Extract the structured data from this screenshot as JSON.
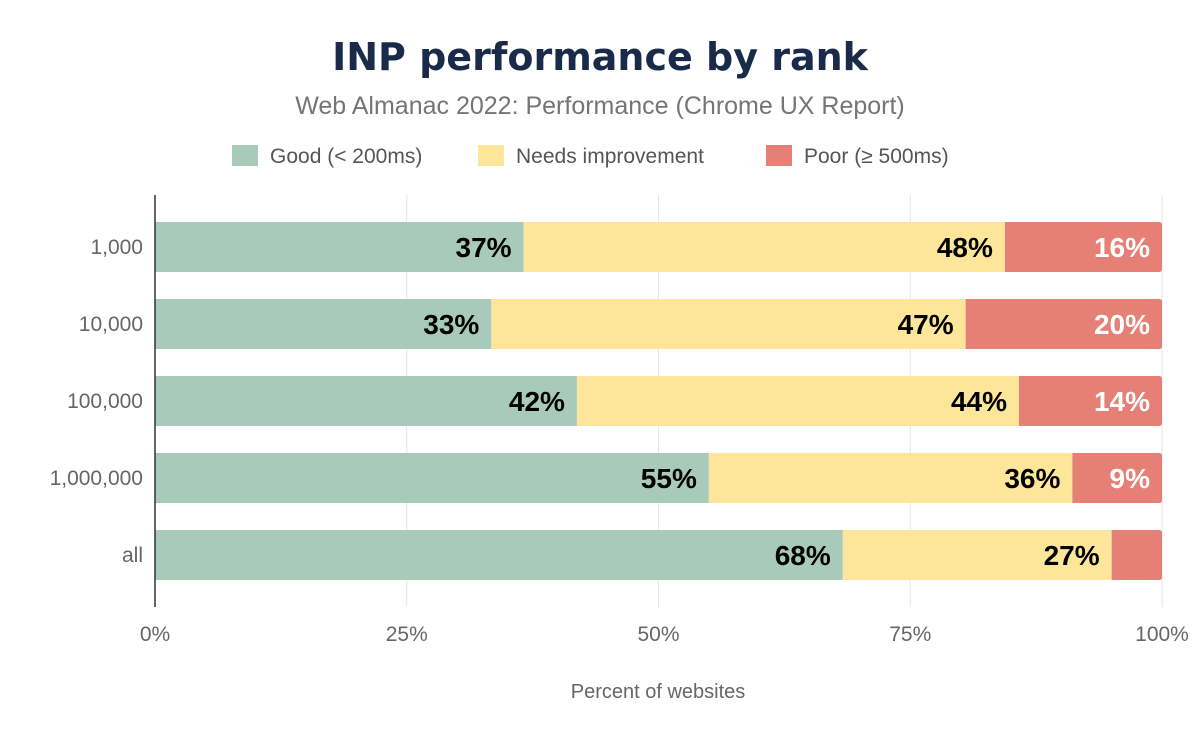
{
  "chart_data": {
    "type": "bar",
    "orientation": "horizontal",
    "stacked": true,
    "title": "INP performance by rank",
    "subtitle": "Web Almanac 2022: Performance (Chrome UX Report)",
    "xlabel": "Percent of websites",
    "ylabel": "",
    "xlim": [
      0,
      100
    ],
    "x_ticks": [
      "0%",
      "25%",
      "50%",
      "75%",
      "100%"
    ],
    "categories": [
      "1,000",
      "10,000",
      "100,000",
      "1,000,000",
      "all"
    ],
    "legend_position": "top",
    "grid": true,
    "series": [
      {
        "name": "Good (< 200ms)",
        "color": "#a8cabb",
        "label_color": "#000000",
        "values": [
          36.6,
          33.4,
          41.9,
          55.0,
          68.3
        ],
        "labels": [
          "37%",
          "33%",
          "42%",
          "55%",
          "68%"
        ]
      },
      {
        "name": "Needs improvement",
        "color": "#fde699",
        "label_color": "#000000",
        "values": [
          47.8,
          47.1,
          43.9,
          36.1,
          26.7
        ],
        "labels": [
          "48%",
          "47%",
          "44%",
          "36%",
          "27%"
        ]
      },
      {
        "name": "Poor (≥ 500ms)",
        "color": "#e67f76",
        "label_color": "#ffffff",
        "values": [
          15.6,
          19.5,
          14.2,
          8.9,
          5.0
        ],
        "labels": [
          "16%",
          "20%",
          "14%",
          "9%",
          ""
        ]
      }
    ]
  }
}
